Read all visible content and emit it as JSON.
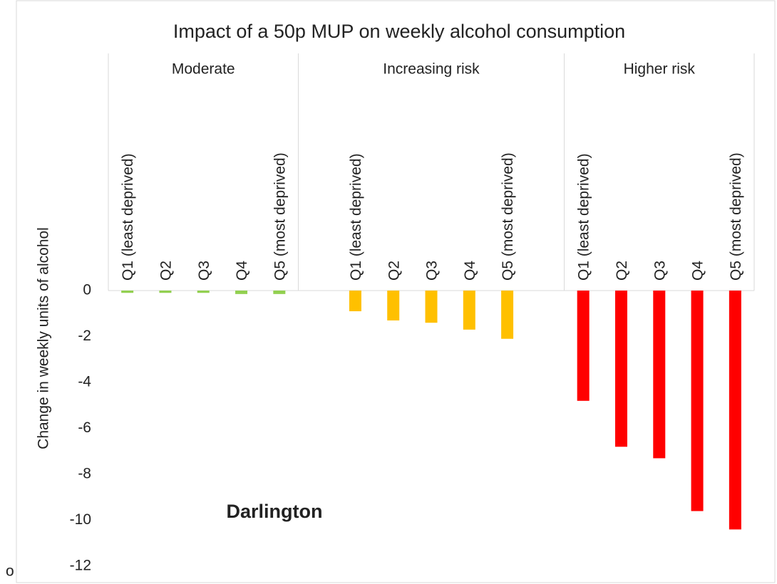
{
  "chart_data": {
    "type": "grouped_bar",
    "title": "Impact of a 50p MUP on weekly alcohol consumption",
    "y_label": "Change in weekly units of alcohol",
    "annotation": "Darlington",
    "corner_text": "o",
    "groups": [
      {
        "name": "Moderate",
        "color": "#92d050",
        "categories": [
          "Q1  (least deprived)",
          "Q2",
          "Q3",
          "Q4",
          "Q5 (most deprived)"
        ],
        "values": [
          -0.1,
          -0.1,
          -0.1,
          -0.15,
          -0.15
        ]
      },
      {
        "name": "Increasing risk",
        "color": "#ffc000",
        "categories": [
          "Q1  (least deprived)",
          "Q2",
          "Q3",
          "Q4",
          "Q5 (most deprived)"
        ],
        "values": [
          -0.9,
          -1.3,
          -1.4,
          -1.7,
          -2.1
        ]
      },
      {
        "name": "Higher risk",
        "color": "#ff0000",
        "categories": [
          "Q1  (least deprived)",
          "Q2",
          "Q3",
          "Q4",
          "Q5 (most deprived)"
        ],
        "values": [
          -4.8,
          -6.8,
          -7.3,
          -9.6,
          -10.4
        ]
      }
    ],
    "ylim": [
      -12,
      0
    ],
    "yticks": [
      0,
      -2,
      -4,
      -6,
      -8,
      -10,
      -12
    ]
  }
}
